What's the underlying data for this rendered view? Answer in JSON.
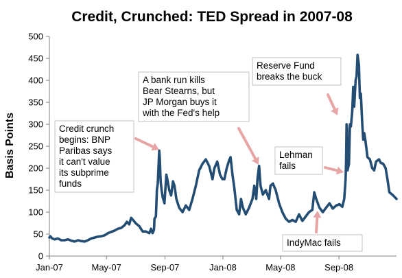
{
  "chart_data": {
    "type": "line",
    "title": "Credit, Crunched: TED Spread in 2007-08",
    "xlabel": "",
    "ylabel": "Basis Points",
    "xlim": [
      "2007-01-01",
      "2008-12-31"
    ],
    "ylim": [
      0,
      500
    ],
    "yticks": [
      0,
      50,
      100,
      150,
      200,
      250,
      300,
      350,
      400,
      450,
      500
    ],
    "xticks": [
      {
        "date": "2007-01-01",
        "label": "Jan-07"
      },
      {
        "date": "2007-05-01",
        "label": "May-07"
      },
      {
        "date": "2007-09-01",
        "label": "Sep-07"
      },
      {
        "date": "2008-01-01",
        "label": "Jan-08"
      },
      {
        "date": "2008-05-01",
        "label": "May-08"
      },
      {
        "date": "2008-09-01",
        "label": "Sep-08"
      }
    ],
    "grid": false,
    "legend": "none",
    "series": [
      {
        "color": "#244d73",
        "points": [
          [
            "2007-01-01",
            42
          ],
          [
            "2007-01-03",
            45
          ],
          [
            "2007-01-07",
            40
          ],
          [
            "2007-01-12",
            38
          ],
          [
            "2007-01-19",
            40
          ],
          [
            "2007-01-26",
            36
          ],
          [
            "2007-02-02",
            36
          ],
          [
            "2007-02-09",
            38
          ],
          [
            "2007-02-16",
            35
          ],
          [
            "2007-02-23",
            33
          ],
          [
            "2007-03-02",
            36
          ],
          [
            "2007-03-09",
            34
          ],
          [
            "2007-03-16",
            33
          ],
          [
            "2007-03-23",
            36
          ],
          [
            "2007-03-30",
            40
          ],
          [
            "2007-04-06",
            42
          ],
          [
            "2007-04-13",
            44
          ],
          [
            "2007-04-20",
            45
          ],
          [
            "2007-04-27",
            47
          ],
          [
            "2007-05-04",
            52
          ],
          [
            "2007-05-11",
            55
          ],
          [
            "2007-05-18",
            58
          ],
          [
            "2007-05-25",
            62
          ],
          [
            "2007-06-01",
            64
          ],
          [
            "2007-06-08",
            70
          ],
          [
            "2007-06-13",
            78
          ],
          [
            "2007-06-18",
            72
          ],
          [
            "2007-06-22",
            87
          ],
          [
            "2007-06-26",
            82
          ],
          [
            "2007-07-02",
            74
          ],
          [
            "2007-07-09",
            68
          ],
          [
            "2007-07-16",
            56
          ],
          [
            "2007-07-23",
            56
          ],
          [
            "2007-07-30",
            52
          ],
          [
            "2007-08-03",
            62
          ],
          [
            "2007-08-06",
            52
          ],
          [
            "2007-08-09",
            60
          ],
          [
            "2007-08-10",
            85
          ],
          [
            "2007-08-13",
            90
          ],
          [
            "2007-08-15",
            150
          ],
          [
            "2007-08-17",
            165
          ],
          [
            "2007-08-20",
            240
          ],
          [
            "2007-08-21",
            225
          ],
          [
            "2007-08-23",
            170
          ],
          [
            "2007-08-25",
            150
          ],
          [
            "2007-08-27",
            135
          ],
          [
            "2007-08-31",
            120
          ],
          [
            "2007-09-04",
            185
          ],
          [
            "2007-09-06",
            175
          ],
          [
            "2007-09-10",
            150
          ],
          [
            "2007-09-14",
            138
          ],
          [
            "2007-09-18",
            170
          ],
          [
            "2007-09-21",
            160
          ],
          [
            "2007-09-25",
            130
          ],
          [
            "2007-10-01",
            110
          ],
          [
            "2007-10-08",
            100
          ],
          [
            "2007-10-15",
            115
          ],
          [
            "2007-10-22",
            105
          ],
          [
            "2007-10-29",
            130
          ],
          [
            "2007-11-05",
            160
          ],
          [
            "2007-11-12",
            195
          ],
          [
            "2007-11-19",
            210
          ],
          [
            "2007-11-26",
            220
          ],
          [
            "2007-12-03",
            205
          ],
          [
            "2007-12-10",
            175
          ],
          [
            "2007-12-14",
            200
          ],
          [
            "2007-12-20",
            215
          ],
          [
            "2007-12-26",
            185
          ],
          [
            "2007-12-31",
            175
          ],
          [
            "2008-01-04",
            175
          ],
          [
            "2008-01-09",
            200
          ],
          [
            "2008-01-14",
            218
          ],
          [
            "2008-01-17",
            225
          ],
          [
            "2008-01-21",
            185
          ],
          [
            "2008-01-25",
            155
          ],
          [
            "2008-01-30",
            105
          ],
          [
            "2008-02-04",
            95
          ],
          [
            "2008-02-08",
            130
          ],
          [
            "2008-02-12",
            110
          ],
          [
            "2008-02-18",
            95
          ],
          [
            "2008-02-25",
            110
          ],
          [
            "2008-03-03",
            130
          ],
          [
            "2008-03-07",
            160
          ],
          [
            "2008-03-11",
            130
          ],
          [
            "2008-03-14",
            180
          ],
          [
            "2008-03-17",
            205
          ],
          [
            "2008-03-20",
            160
          ],
          [
            "2008-03-25",
            140
          ],
          [
            "2008-03-31",
            150
          ],
          [
            "2008-04-07",
            130
          ],
          [
            "2008-04-10",
            160
          ],
          [
            "2008-04-15",
            165
          ],
          [
            "2008-04-21",
            150
          ],
          [
            "2008-04-28",
            120
          ],
          [
            "2008-05-05",
            100
          ],
          [
            "2008-05-12",
            85
          ],
          [
            "2008-05-19",
            78
          ],
          [
            "2008-05-26",
            82
          ],
          [
            "2008-06-02",
            78
          ],
          [
            "2008-06-09",
            95
          ],
          [
            "2008-06-16",
            80
          ],
          [
            "2008-06-23",
            90
          ],
          [
            "2008-06-30",
            100
          ],
          [
            "2008-07-07",
            105
          ],
          [
            "2008-07-11",
            145
          ],
          [
            "2008-07-15",
            130
          ],
          [
            "2008-07-22",
            110
          ],
          [
            "2008-07-29",
            100
          ],
          [
            "2008-08-05",
            110
          ],
          [
            "2008-08-12",
            120
          ],
          [
            "2008-08-19",
            108
          ],
          [
            "2008-08-26",
            115
          ],
          [
            "2008-09-02",
            118
          ],
          [
            "2008-09-08",
            112
          ],
          [
            "2008-09-12",
            130
          ],
          [
            "2008-09-15",
            175
          ],
          [
            "2008-09-16",
            215
          ],
          [
            "2008-09-17",
            300
          ],
          [
            "2008-09-18",
            290
          ],
          [
            "2008-09-19",
            195
          ],
          [
            "2008-09-22",
            210
          ],
          [
            "2008-09-24",
            300
          ],
          [
            "2008-09-26",
            295
          ],
          [
            "2008-09-29",
            330
          ],
          [
            "2008-10-01",
            385
          ],
          [
            "2008-10-03",
            340
          ],
          [
            "2008-10-06",
            400
          ],
          [
            "2008-10-08",
            410
          ],
          [
            "2008-10-10",
            458
          ],
          [
            "2008-10-13",
            435
          ],
          [
            "2008-10-15",
            360
          ],
          [
            "2008-10-17",
            370
          ],
          [
            "2008-10-20",
            300
          ],
          [
            "2008-10-22",
            265
          ],
          [
            "2008-10-24",
            280
          ],
          [
            "2008-10-27",
            260
          ],
          [
            "2008-10-31",
            225
          ],
          [
            "2008-11-05",
            220
          ],
          [
            "2008-11-10",
            200
          ],
          [
            "2008-11-14",
            195
          ],
          [
            "2008-11-18",
            215
          ],
          [
            "2008-11-24",
            220
          ],
          [
            "2008-11-28",
            212
          ],
          [
            "2008-12-03",
            210
          ],
          [
            "2008-12-08",
            200
          ],
          [
            "2008-12-12",
            175
          ],
          [
            "2008-12-16",
            145
          ],
          [
            "2008-12-22",
            140
          ],
          [
            "2008-12-31",
            130
          ]
        ]
      }
    ],
    "annotations": [
      {
        "lines": [
          "Credit crunch",
          "begins: BNP",
          "Paribas says",
          "it can't value",
          "its subprime",
          "funds"
        ]
      },
      {
        "lines": [
          "A bank run kills",
          "Bear Stearns, but",
          "JP Morgan buys it",
          "with the Fed's help"
        ]
      },
      {
        "lines": [
          "Reserve Fund",
          "breaks the buck"
        ]
      },
      {
        "lines": [
          "Lehman",
          "fails"
        ]
      },
      {
        "lines": [
          "IndyMac fails"
        ]
      }
    ]
  }
}
